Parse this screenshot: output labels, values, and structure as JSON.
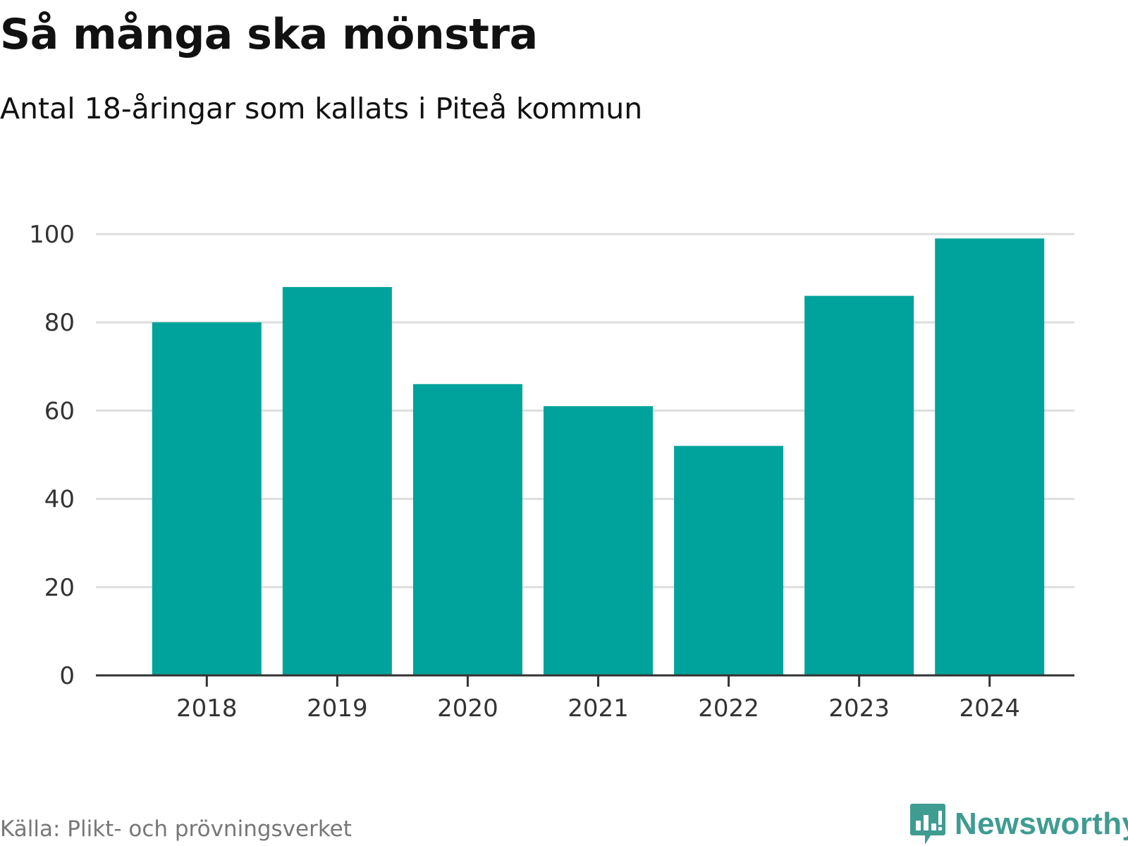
{
  "header": {
    "title": "Så många ska mönstra",
    "subtitle": "Antal 18-åringar som kallats i Piteå kommun"
  },
  "footer": {
    "source": "Källa: Plikt- och prövningsverket",
    "brand": "Newsworthy"
  },
  "colors": {
    "bar": "#00a39b",
    "grid": "#dddddd",
    "axis": "#333333",
    "brand": "#3f9c92"
  },
  "chart_data": {
    "type": "bar",
    "categories": [
      "2018",
      "2019",
      "2020",
      "2021",
      "2022",
      "2023",
      "2024"
    ],
    "values": [
      80,
      88,
      66,
      61,
      52,
      86,
      99
    ],
    "ylim": [
      0,
      100
    ],
    "yticks": [
      "0",
      "20",
      "40",
      "60",
      "80",
      "100"
    ],
    "grid": true
  }
}
